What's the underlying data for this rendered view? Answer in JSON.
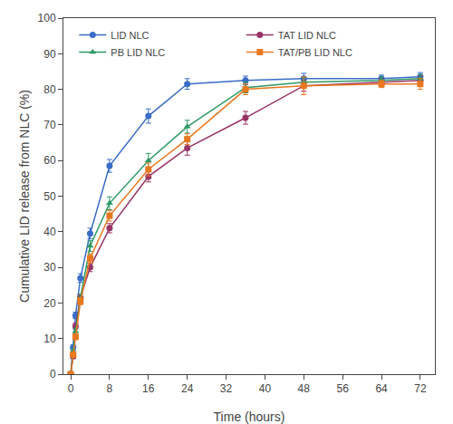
{
  "chart_data": {
    "type": "line",
    "xlabel": "Time (hours)",
    "ylabel": "Cumulative LID release from NLC (%)",
    "x": [
      0,
      0.5,
      1,
      2,
      4,
      8,
      16,
      24,
      36,
      48,
      64,
      72
    ],
    "series": [
      {
        "name": "LID NLC",
        "color": "#3A6DC8",
        "marker": "circle",
        "values": [
          0,
          7.5,
          16.5,
          27.0,
          39.5,
          58.5,
          72.5,
          81.5,
          82.5,
          83.0,
          83.0,
          83.5
        ],
        "yerr": [
          0,
          0.7,
          0.9,
          1.2,
          1.5,
          1.8,
          2.0,
          1.5,
          1.2,
          1.5,
          1.0,
          1.2
        ]
      },
      {
        "name": "TAT LID NLC",
        "color": "#993366",
        "marker": "circle",
        "values": [
          0,
          5.0,
          13.5,
          21.5,
          30.0,
          41.0,
          55.5,
          63.5,
          72.0,
          81.0,
          82.0,
          82.5
        ],
        "yerr": [
          0,
          0.6,
          0.8,
          1.0,
          1.2,
          1.3,
          1.5,
          2.0,
          1.8,
          1.5,
          1.0,
          1.2
        ]
      },
      {
        "name": "PB LID NLC",
        "color": "#2E9966",
        "marker": "triangle-up",
        "values": [
          0,
          6.5,
          12.0,
          21.5,
          36.0,
          48.0,
          60.0,
          69.5,
          80.5,
          82.0,
          82.5,
          83.0
        ],
        "yerr": [
          0,
          0.7,
          0.9,
          1.0,
          1.5,
          1.8,
          2.0,
          1.8,
          1.5,
          1.2,
          1.0,
          1.2
        ]
      },
      {
        "name": "TAT/PB LID NLC",
        "color": "#E87820",
        "marker": "square",
        "values": [
          0,
          5.5,
          10.5,
          20.5,
          32.5,
          44.5,
          57.5,
          66.0,
          80.0,
          81.0,
          81.5,
          81.5
        ],
        "yerr": [
          0,
          0.7,
          0.8,
          1.0,
          1.3,
          1.5,
          1.8,
          1.5,
          1.5,
          2.5,
          1.0,
          1.5
        ]
      }
    ],
    "xlim": [
      -1.5,
      75
    ],
    "ylim": [
      0,
      100
    ],
    "xticks": [
      0,
      8,
      16,
      24,
      32,
      40,
      48,
      56,
      64,
      72
    ],
    "yticks": [
      0,
      10,
      20,
      30,
      40,
      50,
      60,
      70,
      80,
      90,
      100
    ],
    "grid": false,
    "legend": "upper left"
  }
}
